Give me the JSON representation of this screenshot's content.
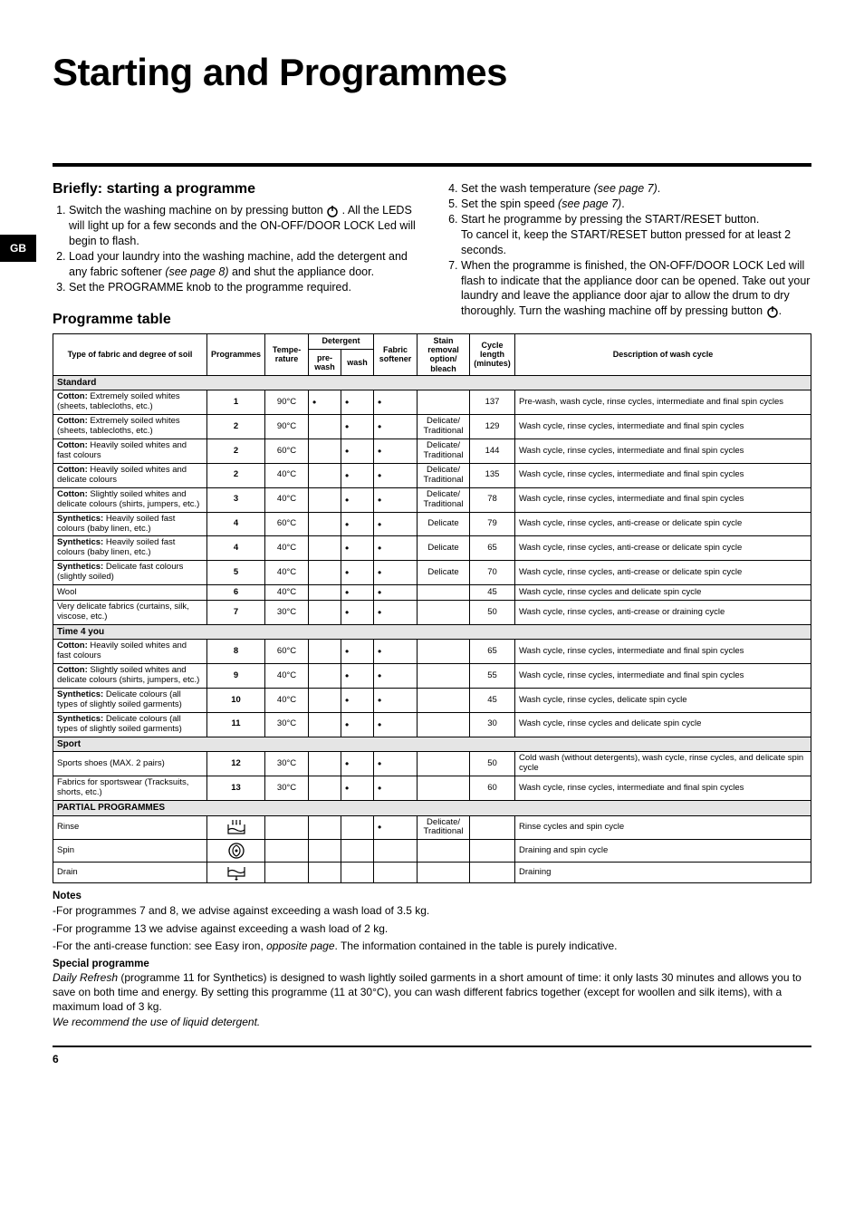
{
  "page": {
    "title": "Starting and Programmes",
    "lang_tab": "GB",
    "page_number": "6"
  },
  "briefly": {
    "heading": "Briefly: starting a programme",
    "left_items": [
      "Switch the washing machine on by pressing button     . All the LEDS will light up for a few seconds and the ON-OFF/DOOR LOCK Led will begin to flash.",
      "Load your laundry into the washing machine, add the detergent and any fabric softener (see page 8) and shut the appliance door.",
      "Set the PROGRAMME knob to the programme required."
    ],
    "right_items": [
      "Set the wash temperature (see page 7).",
      "Set the spin speed (see page 7).",
      "Start he programme by pressing the START/RESET button.\nTo cancel it, keep the START/RESET button pressed for at least 2 seconds.",
      "When the programme is finished, the ON-OFF/DOOR LOCK Led will flash to indicate that the appliance door can be opened. Take out your laundry and leave the appliance door ajar to allow the drum to dry thoroughly. Turn the washing machine off by pressing button     ."
    ]
  },
  "table": {
    "heading": "Programme table",
    "headers": {
      "type": "Type of fabric and degree of soil",
      "prog": "Programmes",
      "temp": "Tempe-rature",
      "detergent": "Detergent",
      "prewash": "pre-wash",
      "wash": "wash",
      "softener": "Fabric softener",
      "stain": "Stain removal option/ bleach",
      "length": "Cycle length (minutes)",
      "desc": "Description of wash cycle"
    },
    "sections": [
      {
        "title": "Standard",
        "rows": [
          {
            "type_b": "Cotton:",
            "type": " Extremely soiled whites (sheets, tablecloths, etc.)",
            "prog": "1",
            "temp": "90°C",
            "pre": "•",
            "wash": "•",
            "soft": "•",
            "stain": "",
            "len": "137",
            "desc": "Pre-wash, wash cycle, rinse cycles, intermediate and final spin cycles"
          },
          {
            "type_b": "Cotton:",
            "type": " Extremely soiled whites (sheets, tablecloths, etc.)",
            "prog": "2",
            "temp": "90°C",
            "pre": "",
            "wash": "•",
            "soft": "•",
            "stain": "Delicate/ Traditional",
            "len": "129",
            "desc": "Wash cycle, rinse cycles, intermediate and final spin cycles"
          },
          {
            "type_b": "Cotton:",
            "type": " Heavily soiled whites and fast colours",
            "prog": "2",
            "temp": "60°C",
            "pre": "",
            "wash": "•",
            "soft": "•",
            "stain": "Delicate/ Traditional",
            "len": "144",
            "desc": "Wash cycle, rinse cycles, intermediate and final spin cycles"
          },
          {
            "type_b": "Cotton:",
            "type": " Heavily soiled whites and delicate colours",
            "prog": "2",
            "temp": "40°C",
            "pre": "",
            "wash": "•",
            "soft": "•",
            "stain": "Delicate/ Traditional",
            "len": "135",
            "desc": "Wash cycle, rinse cycles, intermediate and final spin cycles"
          },
          {
            "type_b": "Cotton:",
            "type": " Slightly soiled whites and delicate colours (shirts, jumpers, etc.)",
            "prog": "3",
            "temp": "40°C",
            "pre": "",
            "wash": "•",
            "soft": "•",
            "stain": "Delicate/ Traditional",
            "len": "78",
            "desc": "Wash cycle, rinse cycles, intermediate and final spin cycles"
          },
          {
            "type_b": "Synthetics:",
            "type": " Heavily soiled fast colours (baby linen, etc.)",
            "prog": "4",
            "temp": "60°C",
            "pre": "",
            "wash": "•",
            "soft": "•",
            "stain": "Delicate",
            "len": "79",
            "desc": "Wash cycle, rinse cycles, anti-crease or delicate spin cycle"
          },
          {
            "type_b": "Synthetics:",
            "type": " Heavily soiled fast colours (baby linen, etc.)",
            "prog": "4",
            "temp": "40°C",
            "pre": "",
            "wash": "•",
            "soft": "•",
            "stain": "Delicate",
            "len": "65",
            "desc": "Wash cycle, rinse cycles, anti-crease or delicate spin cycle"
          },
          {
            "type_b": "Synthetics:",
            "type": " Delicate fast colours (slightly soiled)",
            "prog": "5",
            "temp": "40°C",
            "pre": "",
            "wash": "•",
            "soft": "•",
            "stain": "Delicate",
            "len": "70",
            "desc": "Wash cycle, rinse cycles, anti-crease or delicate spin cycle"
          },
          {
            "type_b": "",
            "type": "Wool",
            "prog": "6",
            "temp": "40°C",
            "pre": "",
            "wash": "•",
            "soft": "•",
            "stain": "",
            "len": "45",
            "desc": "Wash cycle, rinse cycles and delicate spin cycle"
          },
          {
            "type_b": "",
            "type": "Very delicate fabrics (curtains, silk, viscose, etc.)",
            "prog": "7",
            "temp": "30°C",
            "pre": "",
            "wash": "•",
            "soft": "•",
            "stain": "",
            "len": "50",
            "desc": "Wash cycle, rinse cycles, anti-crease or draining cycle"
          }
        ]
      },
      {
        "title": "Time 4 you",
        "rows": [
          {
            "type_b": "Cotton:",
            "type": " Heavily soiled whites and fast colours",
            "prog": "8",
            "temp": "60°C",
            "pre": "",
            "wash": "•",
            "soft": "•",
            "stain": "",
            "len": "65",
            "desc": "Wash cycle, rinse cycles, intermediate and final spin cycles"
          },
          {
            "type_b": "Cotton:",
            "type": " Slightly soiled whites and delicate colours (shirts, jumpers, etc.)",
            "prog": "9",
            "temp": "40°C",
            "pre": "",
            "wash": "•",
            "soft": "•",
            "stain": "",
            "len": "55",
            "desc": "Wash cycle, rinse cycles, intermediate and final spin cycles"
          },
          {
            "type_b": "Synthetics:",
            "type": " Delicate colours (all types of slightly soiled garments)",
            "prog": "10",
            "temp": "40°C",
            "pre": "",
            "wash": "•",
            "soft": "•",
            "stain": "",
            "len": "45",
            "desc": "Wash cycle, rinse cycles, delicate spin cycle"
          },
          {
            "type_b": "Synthetics:",
            "type": " Delicate colours (all types of slightly soiled garments)",
            "prog": "11",
            "temp": "30°C",
            "pre": "",
            "wash": "•",
            "soft": "•",
            "stain": "",
            "len": "30",
            "desc": "Wash cycle, rinse cycles and delicate spin cycle"
          }
        ]
      },
      {
        "title": "Sport",
        "rows": [
          {
            "type_b": "",
            "type": "Sports shoes (MAX. 2 pairs)",
            "prog": "12",
            "temp": "30°C",
            "pre": "",
            "wash": "•",
            "soft": "•",
            "stain": "",
            "len": "50",
            "desc": "Cold wash (without detergents), wash cycle, rinse cycles, and delicate spin cycle"
          },
          {
            "type_b": "",
            "type": "Fabrics for sportswear (Tracksuits, shorts, etc.)",
            "prog": "13",
            "temp": "30°C",
            "pre": "",
            "wash": "•",
            "soft": "•",
            "stain": "",
            "len": "60",
            "desc": "Wash cycle, rinse cycles, intermediate and final spin cycles"
          }
        ]
      },
      {
        "title": "PARTIAL PROGRAMMES",
        "rows": [
          {
            "type_b": "",
            "type": "Rinse",
            "prog": "ICON_RINSE",
            "temp": "",
            "pre": "",
            "wash": "",
            "soft": "•",
            "stain": "Delicate/ Traditional",
            "len": "",
            "desc": "Rinse cycles and spin cycle"
          },
          {
            "type_b": "",
            "type": "Spin",
            "prog": "ICON_SPIN",
            "temp": "",
            "pre": "",
            "wash": "",
            "soft": "",
            "stain": "",
            "len": "",
            "desc": "Draining and  spin cycle"
          },
          {
            "type_b": "",
            "type": "Drain",
            "prog": "ICON_DRAIN",
            "temp": "",
            "pre": "",
            "wash": "",
            "soft": "",
            "stain": "",
            "len": "",
            "desc": "Draining"
          }
        ]
      }
    ]
  },
  "notes": {
    "heading": "Notes",
    "lines": [
      "-For programmes 7  and 8, we advise against exceeding a wash load of 3.5 kg.",
      "-For programme 13 we advise against exceeding a wash load of 2 kg.",
      "-For the anti-crease function: see Easy iron, opposite page. The information contained in the table is purely indicative."
    ]
  },
  "special": {
    "heading": "Special programme",
    "text": "Daily Refresh (programme 11 for Synthetics) is designed to wash lightly soiled garments in a short amount of time: it only lasts 30 minutes and allows you to save on both time and energy. By setting this programme (11 at 30°C), you can wash different fabrics together (except for woollen and silk items), with a maximum load of 3 kg.\nWe recommend the use of liquid detergent."
  },
  "colors": {
    "section_bg": "#e5e5e5",
    "border": "#000000"
  }
}
